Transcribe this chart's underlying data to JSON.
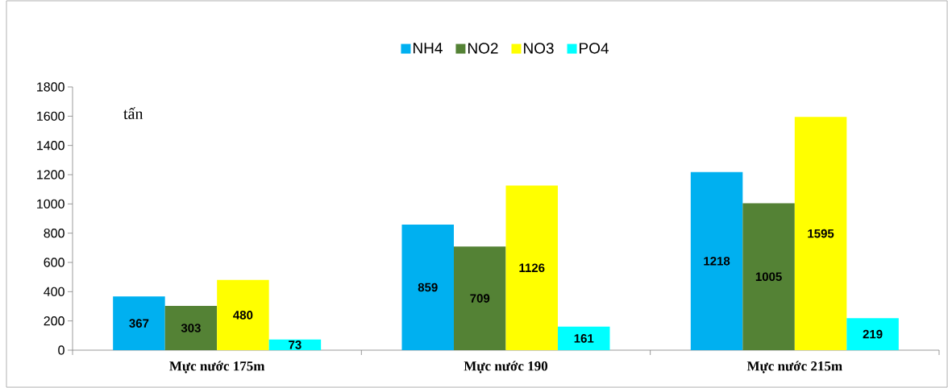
{
  "chart_data": {
    "type": "bar",
    "ylabel": "tấn",
    "categories": [
      "Mực nước 175m",
      "Mực nước 190",
      "Mực nước 215m"
    ],
    "series": [
      {
        "name": "NH4",
        "color": "#00b0f0",
        "values": [
          367,
          859,
          1218
        ]
      },
      {
        "name": "NO2",
        "color": "#548235",
        "values": [
          303,
          709,
          1005
        ]
      },
      {
        "name": "NO3",
        "color": "#ffff00",
        "values": [
          480,
          1126,
          1595
        ]
      },
      {
        "name": "PO4",
        "color": "#00ffff",
        "values": [
          73,
          161,
          219
        ]
      }
    ],
    "ylim": [
      0,
      1800
    ],
    "yticks": [
      0,
      200,
      400,
      600,
      800,
      1000,
      1200,
      1400,
      1600,
      1800
    ],
    "data_labels": true,
    "legend": "top",
    "grid": false
  }
}
